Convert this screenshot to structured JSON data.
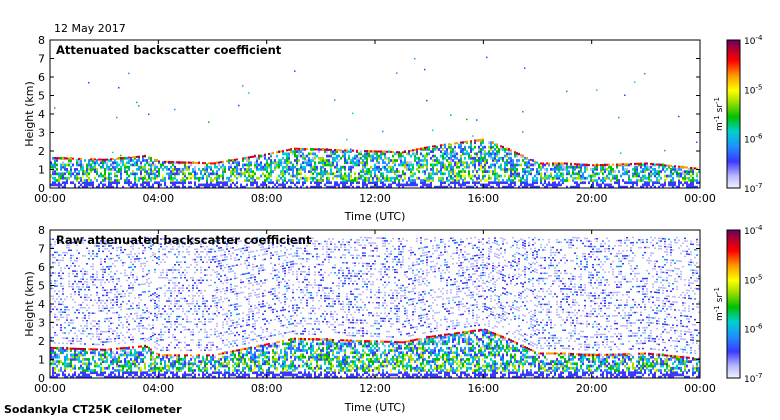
{
  "page": {
    "date": "12 May 2017",
    "instrument": "Sodankyla CT25K ceilometer"
  },
  "chart_data": [
    {
      "type": "heatmap",
      "title": "Attenuated backscatter coefficient",
      "xlabel": "Time (UTC)",
      "ylabel": "Height (km)",
      "xlim": [
        0,
        24
      ],
      "ylim": [
        0,
        8
      ],
      "x_ticks": [
        "00:00",
        "04:00",
        "08:00",
        "12:00",
        "16:00",
        "20:00",
        "00:00"
      ],
      "y_ticks": [
        "0",
        "1",
        "2",
        "3",
        "4",
        "5",
        "6",
        "7",
        "8"
      ],
      "colorbar": {
        "scale": "log",
        "range": [
          1e-07,
          0.0001
        ],
        "tick_base": "10",
        "tick_exponents": [
          "-7",
          "-6",
          "-5",
          "-4"
        ],
        "unit_parts": [
          "m",
          "-1",
          " sr",
          "-1"
        ]
      },
      "features": {
        "noise_top_km": 0,
        "boundary_layer": [
          [
            0,
            1.6
          ],
          [
            2,
            1.5
          ],
          [
            3.5,
            1.7
          ],
          [
            4,
            1.4
          ],
          [
            6,
            1.3
          ],
          [
            8,
            1.8
          ],
          [
            9,
            2.1
          ],
          [
            11,
            2.0
          ],
          [
            13,
            1.9
          ],
          [
            14,
            2.2
          ],
          [
            15,
            2.4
          ],
          [
            16,
            2.6
          ],
          [
            17,
            2.0
          ],
          [
            18,
            1.3
          ],
          [
            19,
            1.3
          ],
          [
            20,
            1.2
          ],
          [
            22,
            1.3
          ],
          [
            24,
            1.0
          ]
        ]
      }
    },
    {
      "type": "heatmap",
      "title": "Raw attenuated backscatter coefficient",
      "xlabel": "Time (UTC)",
      "ylabel": "Height (km)",
      "xlim": [
        0,
        24
      ],
      "ylim": [
        0,
        8
      ],
      "x_ticks": [
        "00:00",
        "04:00",
        "08:00",
        "12:00",
        "16:00",
        "20:00",
        "00:00"
      ],
      "y_ticks": [
        "0",
        "1",
        "2",
        "3",
        "4",
        "5",
        "6",
        "7",
        "8"
      ],
      "colorbar": {
        "scale": "log",
        "range": [
          1e-07,
          0.0001
        ],
        "tick_base": "10",
        "tick_exponents": [
          "-7",
          "-6",
          "-5",
          "-4"
        ],
        "unit_parts": [
          "m",
          "-1",
          " sr",
          "-1"
        ]
      },
      "features": {
        "noise_top_km": 7.5,
        "boundary_layer": [
          [
            0,
            1.6
          ],
          [
            2,
            1.5
          ],
          [
            3.5,
            1.7
          ],
          [
            4,
            1.2
          ],
          [
            6,
            1.2
          ],
          [
            8,
            1.8
          ],
          [
            9,
            2.1
          ],
          [
            11,
            2.0
          ],
          [
            13,
            1.9
          ],
          [
            14,
            2.2
          ],
          [
            15,
            2.4
          ],
          [
            16,
            2.6
          ],
          [
            17,
            2.0
          ],
          [
            18,
            1.3
          ],
          [
            19,
            1.3
          ],
          [
            20,
            1.2
          ],
          [
            22,
            1.3
          ],
          [
            24,
            1.0
          ]
        ]
      }
    }
  ]
}
